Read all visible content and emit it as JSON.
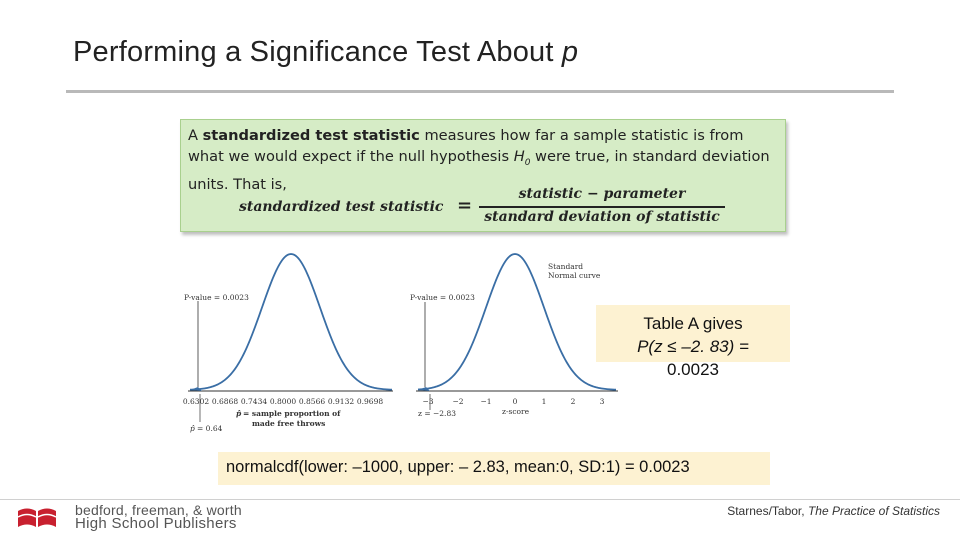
{
  "slide": {
    "title": "Performing a Significance Test About",
    "title_var": "p"
  },
  "definition": {
    "t1": "A ",
    "t2": "standardized test statistic",
    "t3": " measures how far a sample statistic is from what we would expect if the null hypothesis ",
    "t4": "H",
    "t4_sub": "0",
    "t5": " were true, in standard deviation units. That is,",
    "formula": {
      "lhs": "standardized test statistic",
      "equals": "=",
      "numerator": "statistic  − parameter",
      "denominator": "standard deviation of statistic"
    }
  },
  "figure": {
    "left": {
      "pvalue_label": "P-value = 0.0023",
      "ticks": [
        "0.6302",
        "0.6868",
        "0.7434",
        "0.8000",
        "0.8566",
        "0.9132",
        "0.9698"
      ],
      "phat_label": "= sample proportion of",
      "phat_label2": "made free throws",
      "phat_value": "= 0.64"
    },
    "right": {
      "curve_label": "Standard",
      "curve_label2": "Normal curve",
      "pvalue_label": "P-value = 0.0023",
      "ticks": [
        "−3",
        "−2",
        "−1",
        "0",
        "1",
        "2",
        "3"
      ],
      "axis_label": "z-score",
      "z_value": "z = −2.83"
    }
  },
  "table_a": {
    "line1": "Table A gives",
    "line2": "P(z ≤ –2. 83) =",
    "line3": "0.0023"
  },
  "normalcdf": {
    "text": "normalcdf(lower: –1000, upper: – 2.83, mean:0, SD:1) = 0.0023"
  },
  "footer": {
    "publisher1": "bedford, freeman, & worth",
    "publisher2": "High School Publishers",
    "authors": "Starnes/Tabor,",
    "book": "The Practice of Statistics"
  },
  "colors": {
    "definition_bg": "#d6ecc6",
    "callout_bg": "#fdf2d2",
    "curve": "#3a6ea5",
    "logo_red": "#c8202f"
  }
}
